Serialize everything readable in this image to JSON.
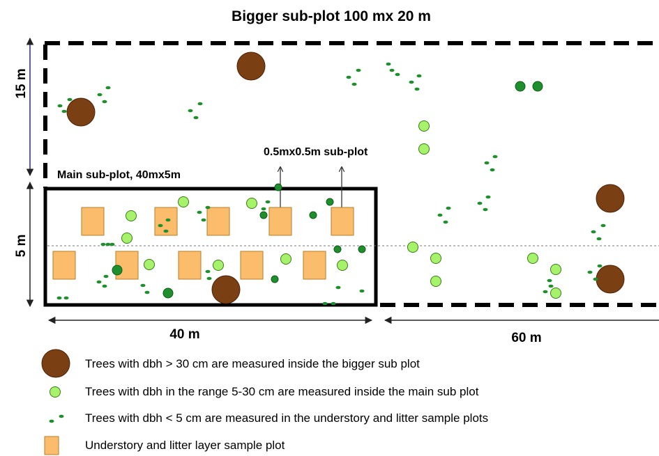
{
  "title": "Bigger sub-plot 100 mx 20 m",
  "dimensions": {
    "top_height": "15 m",
    "bottom_height": "5 m",
    "left_width": "40 m",
    "right_width": "60 m"
  },
  "labels": {
    "main_subplot": "Main sub-plot, 40mx5m",
    "small_subplot": "0.5mx0.5m sub-plot"
  },
  "colors": {
    "large_tree": "#7a3f12",
    "medium_tree": "#a6f26a",
    "small_tree": "#1f8f2e",
    "sample_plot": "#fbbd6b"
  },
  "legend": [
    {
      "symbol": "large-tree",
      "text": "Trees with dbh > 30 cm are measured inside the bigger sub plot"
    },
    {
      "symbol": "medium-tree",
      "text": "Trees with dbh in the range 5-30 cm are measured inside the main sub plot"
    },
    {
      "symbol": "small-tree",
      "text": "Trees with dbh < 5 cm are measured in the understory and litter sample plots"
    },
    {
      "symbol": "sample-plot",
      "text": "Understory and litter layer sample plot"
    }
  ]
}
